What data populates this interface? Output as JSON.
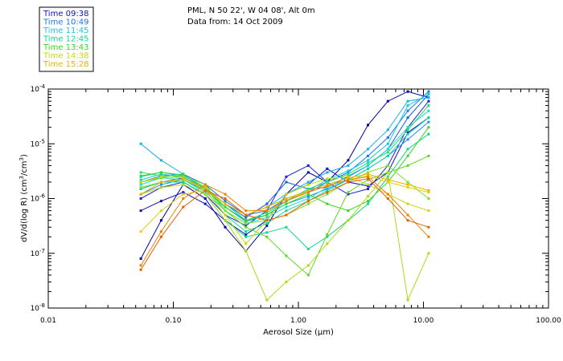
{
  "chart_data": {
    "type": "line",
    "title_line1": "PML, N 50 22', W 04 08', Alt 0m",
    "title_line2": "Data from: 14 Oct 2009",
    "xlabel_prefix": "Aerosol Size (",
    "xlabel_unit": "μm",
    "xlabel_suffix": ")",
    "ylabel_prefix": "dV/d(log R) (cm",
    "ylabel_sup1": "3",
    "ylabel_mid": "/cm",
    "ylabel_sup2": "3",
    "ylabel_suffix": ")",
    "x_scale": "log",
    "y_scale": "log",
    "xlim": [
      0.01,
      100
    ],
    "ylim": [
      1e-08,
      0.0001
    ],
    "x_ticks": [
      {
        "value": 0.01,
        "label": "0.01"
      },
      {
        "value": 0.1,
        "label": "0.10"
      },
      {
        "value": 1,
        "label": "1.00"
      },
      {
        "value": 10,
        "label": "10.00"
      },
      {
        "value": 100,
        "label": "100.00"
      }
    ],
    "y_ticks": [
      {
        "value": 0.0001,
        "base": "10",
        "exp": "-4"
      },
      {
        "value": 1e-05,
        "base": "10",
        "exp": "-5"
      },
      {
        "value": 1e-06,
        "base": "10",
        "exp": "-6"
      },
      {
        "value": 1e-07,
        "base": "10",
        "exp": "-7"
      },
      {
        "value": 1e-08,
        "base": "10",
        "exp": "-8"
      }
    ],
    "legend": [
      {
        "label": "Time 09:38",
        "color": "#1010c0"
      },
      {
        "label": "Time 10:49",
        "color": "#1878e8"
      },
      {
        "label": "Time 11:45",
        "color": "#18c8e0"
      },
      {
        "label": "Time 12:45",
        "color": "#10d890"
      },
      {
        "label": "Time 13:43",
        "color": "#38d820"
      },
      {
        "label": "Time 14:38",
        "color": "#c8d810"
      },
      {
        "label": "Time 15:28",
        "color": "#f0b000"
      }
    ],
    "x": [
      0.055,
      0.08,
      0.12,
      0.18,
      0.26,
      0.38,
      0.56,
      0.8,
      1.2,
      1.7,
      2.5,
      3.6,
      5.2,
      7.5,
      11.0
    ],
    "series": [
      {
        "name": "Time 09:38",
        "color": "#0000a0",
        "values": [
          8e-08,
          4e-07,
          1.8e-06,
          1e-06,
          3e-07,
          1.1e-07,
          3.2e-07,
          1.2e-06,
          3e-06,
          2e-06,
          5e-06,
          2.2e-05,
          6e-05,
          9e-05,
          7e-05
        ]
      },
      {
        "name": "Time 09:38",
        "color": "#1010c0",
        "values": [
          6e-07,
          9e-07,
          1.3e-06,
          8e-07,
          4e-07,
          2.2e-07,
          4e-07,
          1.2e-06,
          1.8e-06,
          3.5e-06,
          2e-06,
          1.7e-06,
          3e-06,
          1.6e-05,
          3e-05
        ]
      },
      {
        "name": "Time 09:38",
        "color": "#2020d8",
        "values": [
          1e-06,
          1.6e-06,
          2e-06,
          1.2e-06,
          5e-07,
          3.2e-07,
          6e-07,
          2.5e-06,
          4e-06,
          2e-06,
          1.2e-06,
          1.5e-06,
          4e-06,
          2e-05,
          6e-05
        ]
      },
      {
        "name": "Time 10:49",
        "color": "#1060e0",
        "values": [
          1.5e-06,
          2e-06,
          2.4e-06,
          1.6e-06,
          8e-07,
          4.5e-07,
          8e-07,
          2e-06,
          1.5e-06,
          1.6e-06,
          2.5e-06,
          4e-06,
          8e-06,
          3e-05,
          8e-05
        ]
      },
      {
        "name": "Time 10:49",
        "color": "#1878e8",
        "values": [
          2e-06,
          2.6e-06,
          2.8e-06,
          1.8e-06,
          9e-07,
          5e-07,
          6e-07,
          1e-06,
          1.3e-06,
          2e-06,
          3e-06,
          6e-06,
          1.3e-05,
          4e-05,
          9e-05
        ]
      },
      {
        "name": "Time 10:49",
        "color": "#2090f0",
        "values": [
          1.2e-06,
          1.8e-06,
          2.2e-06,
          1.4e-06,
          7e-07,
          3.8e-07,
          5e-07,
          8e-07,
          1.1e-06,
          1.5e-06,
          2.2e-06,
          3.5e-06,
          6e-06,
          1.2e-05,
          2.5e-05
        ]
      },
      {
        "name": "Time 11:45",
        "color": "#18b0e8",
        "values": [
          1e-05,
          5e-06,
          2.8e-06,
          1.5e-06,
          8e-07,
          5e-07,
          7e-07,
          1.2e-06,
          2e-06,
          3e-06,
          4e-06,
          8e-06,
          1.8e-05,
          6e-05,
          7e-05
        ]
      },
      {
        "name": "Time 11:45",
        "color": "#18c8e0",
        "values": [
          2.5e-06,
          3e-06,
          2.6e-06,
          1.6e-06,
          8e-07,
          4e-07,
          5e-07,
          9e-07,
          1.4e-06,
          2.2e-06,
          3.2e-06,
          5e-06,
          1e-05,
          5e-05,
          8e-05
        ]
      },
      {
        "name": "Time 11:45",
        "color": "#20d8d0",
        "values": [
          1.8e-06,
          2.4e-06,
          2.2e-06,
          1.3e-06,
          6e-07,
          3.5e-07,
          4.5e-07,
          7e-07,
          1e-06,
          1.6e-06,
          2.6e-06,
          4e-06,
          8e-06,
          2e-05,
          4e-05
        ]
      },
      {
        "name": "Time 12:45",
        "color": "#10d8a0",
        "values": [
          2.2e-06,
          2.8e-06,
          2.5e-06,
          1.4e-06,
          5e-07,
          2.5e-07,
          3.5e-07,
          6e-07,
          9e-07,
          1.4e-06,
          2.2e-06,
          3.5e-06,
          6e-06,
          1.5e-05,
          3e-05
        ]
      },
      {
        "name": "Time 12:45",
        "color": "#10d890",
        "values": [
          1.5e-06,
          2e-06,
          2e-06,
          1.2e-06,
          4e-07,
          2e-07,
          2.4e-07,
          3e-07,
          1.2e-07,
          2e-07,
          4e-07,
          8e-07,
          2.5e-06,
          8e-06,
          1.5e-05
        ]
      },
      {
        "name": "Time 12:45",
        "color": "#20e070",
        "values": [
          3e-06,
          2.6e-06,
          2.4e-06,
          1.5e-06,
          7e-07,
          4e-07,
          5.5e-07,
          9e-07,
          1.5e-06,
          2e-06,
          2.8e-06,
          4.5e-06,
          7e-06,
          1.8e-05,
          5e-05
        ]
      },
      {
        "name": "Time 13:43",
        "color": "#38d820",
        "values": [
          2.6e-06,
          3e-06,
          2.7e-06,
          1.6e-06,
          7e-07,
          4e-07,
          5e-07,
          8e-07,
          1.2e-06,
          8e-07,
          6e-07,
          9e-07,
          2e-06,
          6e-06,
          2e-05
        ]
      },
      {
        "name": "Time 13:43",
        "color": "#60d820",
        "values": [
          2e-06,
          2.4e-06,
          2.6e-06,
          1.8e-06,
          6e-07,
          3e-07,
          2e-07,
          9e-08,
          4e-08,
          2.2e-07,
          1.3e-06,
          2.2e-06,
          3e-06,
          4e-06,
          6e-06
        ]
      },
      {
        "name": "Time 13:43",
        "color": "#80e030",
        "values": [
          1.6e-06,
          2e-06,
          2.2e-06,
          1.5e-06,
          6e-07,
          3.5e-07,
          4e-07,
          5e-07,
          8e-07,
          1.2e-06,
          2e-06,
          3e-06,
          4e-06,
          2e-06,
          1e-06
        ]
      },
      {
        "name": "Time 14:38",
        "color": "#b0d818",
        "values": [
          1.2e-06,
          1.6e-06,
          1.8e-06,
          1.2e-06,
          4e-07,
          1.1e-07,
          1.4e-08,
          3e-08,
          6e-08,
          1.5e-07,
          4e-07,
          1.1e-06,
          3e-06,
          1.4e-08,
          1e-07
        ]
      },
      {
        "name": "Time 14:38",
        "color": "#c8d810",
        "values": [
          2e-06,
          2.5e-06,
          2.4e-06,
          1.4e-06,
          5e-07,
          1.5e-07,
          4e-07,
          1.2e-06,
          1.8e-06,
          2.3e-06,
          2.5e-06,
          1.8e-06,
          1.2e-06,
          8e-07,
          6e-07
        ]
      },
      {
        "name": "Time 14:38",
        "color": "#e0d010",
        "values": [
          2.5e-07,
          6e-07,
          1.2e-06,
          1.4e-06,
          8e-07,
          5e-07,
          7e-07,
          1e-06,
          1.3e-06,
          1.7e-06,
          2.2e-06,
          2.6e-06,
          2e-06,
          1.6e-06,
          1.3e-06
        ]
      },
      {
        "name": "Time 15:28",
        "color": "#f0b000",
        "values": [
          1.2e-06,
          2e-06,
          2.3e-06,
          1.6e-06,
          8e-07,
          5e-07,
          7e-07,
          1e-06,
          1.4e-06,
          1.8e-06,
          2.4e-06,
          2.8e-06,
          2.2e-06,
          1.8e-06,
          1.4e-06
        ]
      },
      {
        "name": "Time 15:28",
        "color": "#f08000",
        "values": [
          6e-08,
          2.5e-07,
          1e-06,
          1.8e-06,
          1.2e-06,
          6e-07,
          6e-07,
          9e-07,
          1.3e-06,
          1.7e-06,
          2.2e-06,
          2.5e-06,
          1.2e-06,
          5e-07,
          2e-07
        ]
      },
      {
        "name": "Time 15:28",
        "color": "#e86000",
        "values": [
          5e-08,
          2e-07,
          7e-07,
          1.4e-06,
          1e-06,
          5e-07,
          4e-07,
          5e-07,
          9e-07,
          1.3e-06,
          2e-06,
          2.3e-06,
          1e-06,
          4e-07,
          3e-07
        ]
      }
    ]
  }
}
